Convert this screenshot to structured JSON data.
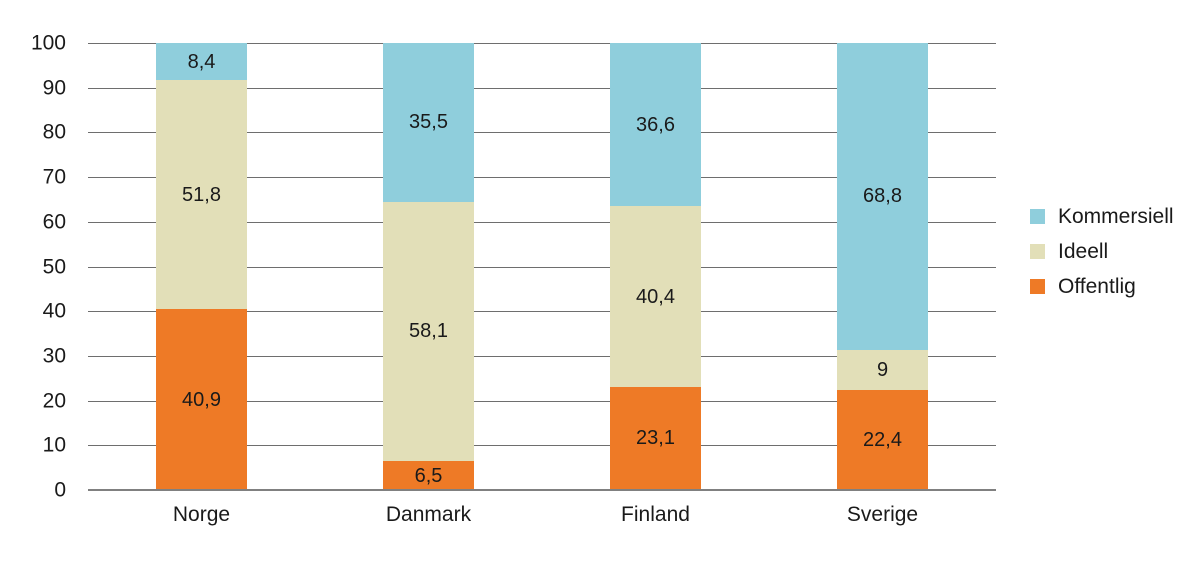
{
  "chart_data": {
    "type": "bar",
    "stacked": true,
    "categories": [
      "Norge",
      "Danmark",
      "Finland",
      "Sverige"
    ],
    "series": [
      {
        "name": "Offentlig",
        "color": "#EE7A26",
        "values": [
          40.9,
          6.5,
          23.1,
          22.4
        ],
        "labels": [
          "40,9",
          "6,5",
          "23,1",
          "22,4"
        ]
      },
      {
        "name": "Ideell",
        "color": "#E2DFB8",
        "values": [
          51.8,
          58.1,
          40.4,
          9
        ],
        "labels": [
          "51,8",
          "58,1",
          "40,4",
          "9"
        ]
      },
      {
        "name": "Kommersiell",
        "color": "#8FCEDC",
        "values": [
          8.4,
          35.5,
          36.6,
          68.8
        ],
        "labels": [
          "8,4",
          "35,5",
          "36,6",
          "68,8"
        ]
      }
    ],
    "ylim": [
      0,
      100
    ],
    "yticks": [
      0,
      10,
      20,
      30,
      40,
      50,
      60,
      70,
      80,
      90,
      100
    ],
    "grid": true,
    "legend_position": "right",
    "legend_order_top_to_bottom": [
      "Kommersiell",
      "Ideell",
      "Offentlig"
    ]
  },
  "colors": {
    "background": "#FFFFFF",
    "gridline": "#6E6E6E",
    "baseline": "#808080",
    "text": "#1A1A1A"
  }
}
